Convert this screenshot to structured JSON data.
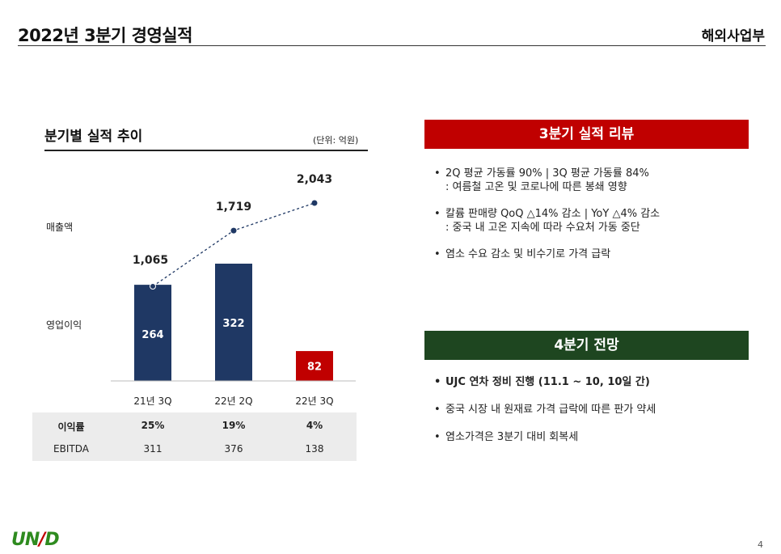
{
  "header": {
    "title": "2022년 3분기 경영실적",
    "department": "해외사업부"
  },
  "left_panel": {
    "heading": "분기별 실적 추이",
    "unit": "(단위: 억원)",
    "row_label_revenue": "매출액",
    "row_label_op": "영업이익"
  },
  "chart_data": {
    "type": "bar",
    "categories": [
      "21년 3Q",
      "22년 2Q",
      "22년 3Q"
    ],
    "series": [
      {
        "name": "매출액",
        "type": "line",
        "values": [
          1065,
          1719,
          2043
        ],
        "labels": [
          "1,065",
          "1,719",
          "2,043"
        ]
      },
      {
        "name": "영업이익",
        "type": "bar",
        "values": [
          264,
          322,
          82
        ],
        "labels": [
          "264",
          "322",
          "82"
        ],
        "colors": [
          "#1f3864",
          "#1f3864",
          "#c00000"
        ]
      }
    ],
    "line_color": "#1f3864"
  },
  "table": {
    "rows": [
      {
        "label": "이익률",
        "values": [
          "25%",
          "19%",
          "4%"
        ],
        "bold": true
      },
      {
        "label": "EBITDA",
        "values": [
          "311",
          "376",
          "138"
        ],
        "bold": false
      }
    ]
  },
  "review": {
    "heading": "3분기 실적 리뷰",
    "color": "#c00000",
    "items": [
      {
        "main": "2Q 평균 가동률 90%  | 3Q 평균 가동률 84%",
        "sub": ": 여름철 고온 및 코로나에 따른 봉쇄 영향"
      },
      {
        "main": "칼륨 판매량 QoQ △14% 감소 | YoY △4% 감소",
        "sub": ": 중국 내 고온 지속에 따라 수요처 가동 중단"
      },
      {
        "main": "염소 수요 감소 및 비수기로 가격 급락",
        "sub": ""
      }
    ]
  },
  "outlook": {
    "heading": "4분기 전망",
    "color": "#1e4620",
    "items": [
      {
        "main": "UJC 연차 정비 진행 (11.1 ~ 10, 10일 간)",
        "bold": true
      },
      {
        "main": "중국 시장 내 원재료 가격 급락에 따른 판가 약세",
        "bold": false
      },
      {
        "main": "염소가격은 3분기 대비 회복세",
        "bold": false
      }
    ]
  },
  "footer": {
    "logo_a": "UN",
    "logo_b": "/",
    "logo_c": "D",
    "page": "4"
  }
}
